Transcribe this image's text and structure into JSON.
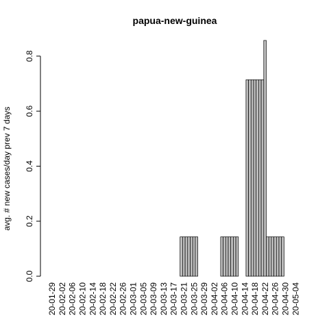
{
  "chart_data": {
    "type": "bar",
    "title": "papua-new-guinea",
    "xlabel": "",
    "ylabel": "avg. # new cases/day prev  7  days",
    "ylim": [
      0,
      0.857
    ],
    "yticks": [
      0.0,
      0.2,
      0.4,
      0.6,
      0.8
    ],
    "ytick_labels": [
      "0.0",
      "0.2",
      "0.4",
      "0.6",
      "0.8"
    ],
    "start_date": "2020-01-29",
    "n_days": 97,
    "xtick_labels": [
      "20-01-29",
      "20-02-02",
      "20-02-06",
      "20-02-10",
      "20-02-14",
      "20-02-18",
      "20-02-22",
      "20-02-26",
      "20-03-01",
      "20-03-05",
      "20-03-09",
      "20-03-13",
      "20-03-17",
      "20-03-21",
      "20-03-25",
      "20-03-29",
      "20-04-02",
      "20-04-06",
      "20-04-10",
      "20-04-14",
      "20-04-18",
      "20-04-22",
      "20-04-26",
      "20-04-30",
      "20-05-04"
    ],
    "nonzero_values": [
      {
        "date": "2020-03-20",
        "value": 0.143
      },
      {
        "date": "2020-03-21",
        "value": 0.143
      },
      {
        "date": "2020-03-22",
        "value": 0.143
      },
      {
        "date": "2020-03-23",
        "value": 0.143
      },
      {
        "date": "2020-03-24",
        "value": 0.143
      },
      {
        "date": "2020-03-25",
        "value": 0.143
      },
      {
        "date": "2020-03-26",
        "value": 0.143
      },
      {
        "date": "2020-04-05",
        "value": 0.143
      },
      {
        "date": "2020-04-06",
        "value": 0.143
      },
      {
        "date": "2020-04-07",
        "value": 0.143
      },
      {
        "date": "2020-04-08",
        "value": 0.143
      },
      {
        "date": "2020-04-09",
        "value": 0.143
      },
      {
        "date": "2020-04-10",
        "value": 0.143
      },
      {
        "date": "2020-04-11",
        "value": 0.143
      },
      {
        "date": "2020-04-15",
        "value": 0.714
      },
      {
        "date": "2020-04-16",
        "value": 0.714
      },
      {
        "date": "2020-04-17",
        "value": 0.714
      },
      {
        "date": "2020-04-18",
        "value": 0.714
      },
      {
        "date": "2020-04-19",
        "value": 0.714
      },
      {
        "date": "2020-04-20",
        "value": 0.714
      },
      {
        "date": "2020-04-21",
        "value": 0.714
      },
      {
        "date": "2020-04-22",
        "value": 0.857
      },
      {
        "date": "2020-04-23",
        "value": 0.143
      },
      {
        "date": "2020-04-24",
        "value": 0.143
      },
      {
        "date": "2020-04-25",
        "value": 0.143
      },
      {
        "date": "2020-04-26",
        "value": 0.143
      },
      {
        "date": "2020-04-27",
        "value": 0.143
      },
      {
        "date": "2020-04-28",
        "value": 0.143
      },
      {
        "date": "2020-04-29",
        "value": 0.143
      }
    ],
    "grid": false,
    "legend": "none",
    "bar_fill": "#bebebe",
    "bar_stroke": "#000000"
  }
}
